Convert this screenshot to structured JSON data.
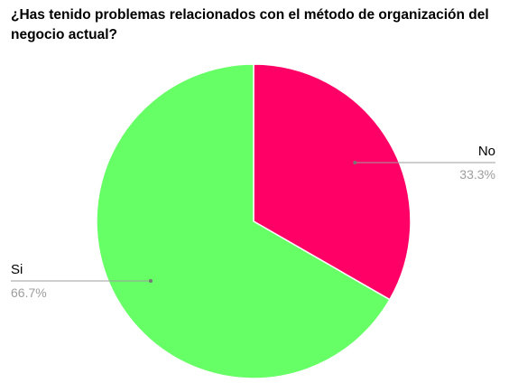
{
  "chart_data": {
    "type": "pie",
    "title": "¿Has tenido problemas relacionados con el método de organización del negocio actual?",
    "slices": [
      {
        "label": "No",
        "value": 33.3,
        "percent_label": "33.3%",
        "color": "#ff0066"
      },
      {
        "label": "Si",
        "value": 66.7,
        "percent_label": "66.7%",
        "color": "#66ff66"
      }
    ],
    "start_angle": "12 o'clock",
    "direction": "clockwise",
    "legend": "none",
    "label_color": "#000000",
    "percent_color": "#9e9e9e",
    "leader_line_color": "#9e9e9e"
  }
}
